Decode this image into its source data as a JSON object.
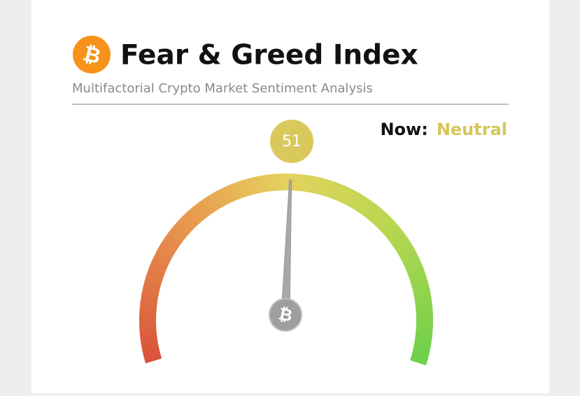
{
  "header": {
    "title": "Fear & Greed Index",
    "subtitle": "Multifactorial Crypto Market Sentiment Analysis"
  },
  "status": {
    "label": "Now:",
    "value": "Neutral"
  },
  "gauge": {
    "value": 51,
    "range": [
      0,
      100
    ]
  }
}
